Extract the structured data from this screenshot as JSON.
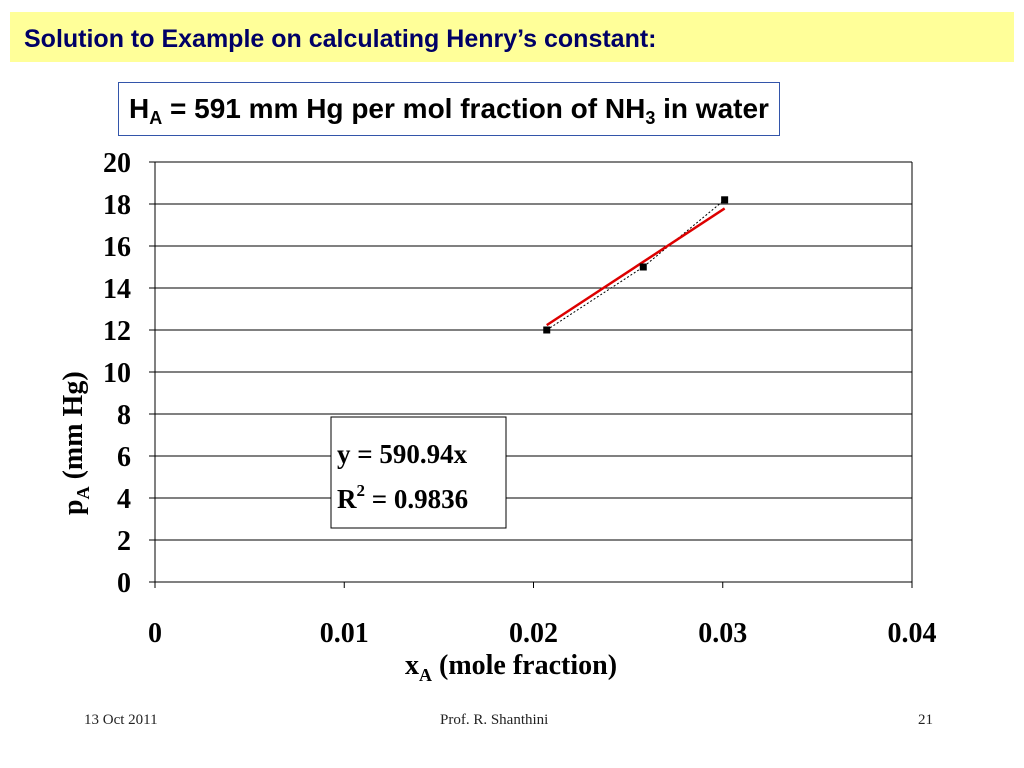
{
  "slide": {
    "title": "Solution to Example on calculating Henry’s constant:",
    "result": {
      "var": "H",
      "var_sub": "A",
      "text_before": " = 591 mm Hg per mol fraction of NH",
      "text_sub": "3",
      "text_after": " in water"
    },
    "footer": {
      "date": "13 Oct 2011",
      "author": "Prof. R. Shanthini",
      "page": "21"
    },
    "colors": {
      "title_bg": "#ffff99",
      "title_text": "#000066",
      "fit_line": "#dd0000",
      "box_border": "#3355aa"
    }
  },
  "chart_data": {
    "type": "scatter",
    "x": [
      0.0207,
      0.0258,
      0.0301
    ],
    "y": [
      12.0,
      15.0,
      18.2
    ],
    "xlim": [
      0,
      0.04
    ],
    "ylim": [
      0,
      20
    ],
    "x_ticks": [
      "0",
      "0.01",
      "0.02",
      "0.03",
      "0.04"
    ],
    "y_ticks": [
      "0",
      "2",
      "4",
      "6",
      "8",
      "10",
      "12",
      "14",
      "16",
      "18",
      "20"
    ],
    "xlabel_main": "x",
    "xlabel_sub": "A",
    "xlabel_rest": " (mole fraction)",
    "ylabel_main": "p",
    "ylabel_sub": "A",
    "ylabel_rest": " (mm Hg)",
    "grid": "horizontal",
    "trendline": {
      "slope": 590.94,
      "x_range": [
        0.0207,
        0.0301
      ],
      "equation": "y = 590.94x",
      "r2_label": "R",
      "r2_sup": "2",
      "r2_value": " = 0.9836"
    },
    "connector": "dotted"
  }
}
